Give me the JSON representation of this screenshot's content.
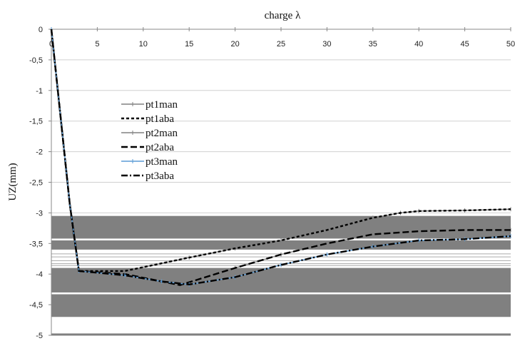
{
  "chart_data": {
    "type": "line",
    "title": "",
    "xlabel": "charge λ",
    "ylabel": "UZ(mm)",
    "xlim": [
      0,
      50
    ],
    "ylim": [
      -5,
      0
    ],
    "x_ticks": [
      0,
      5,
      10,
      15,
      20,
      25,
      30,
      35,
      40,
      45,
      50
    ],
    "x_tick_labels": [
      "0",
      "5",
      "10",
      "15",
      "20",
      "25",
      "30",
      "35",
      "40",
      "45",
      "50"
    ],
    "y_ticks": [
      0,
      -0.5,
      -1,
      -1.5,
      -2,
      -2.5,
      -3,
      -3.5,
      -4,
      -4.5,
      -5
    ],
    "y_tick_labels": [
      "0",
      "-0,5",
      "-1",
      "-1,5",
      "-2",
      "-2,5",
      "-3",
      "-3,5",
      "-4",
      "-4,5",
      "-5"
    ],
    "x_axis_position": "top",
    "legend_position": "left-center",
    "grid": "horizontal",
    "series": [
      {
        "name": "pt1man",
        "color": "#808080",
        "style": "solid-markers",
        "x": [
          0,
          2,
          3,
          8,
          15,
          20,
          25,
          30,
          35,
          38,
          40,
          45,
          50
        ],
        "y": [
          0,
          -2.85,
          -3.95,
          -3.95,
          -3.73,
          -3.58,
          -3.45,
          -3.28,
          -3.08,
          -3.0,
          -2.97,
          -2.96,
          -2.94
        ]
      },
      {
        "name": "pt1aba",
        "color": "#000000",
        "style": "dashed",
        "x": [
          0,
          2,
          3,
          8,
          15,
          20,
          25,
          30,
          35,
          38,
          40,
          45,
          50
        ],
        "y": [
          0,
          -2.85,
          -3.95,
          -3.95,
          -3.73,
          -3.58,
          -3.45,
          -3.28,
          -3.08,
          -3.0,
          -2.97,
          -2.96,
          -2.94
        ]
      },
      {
        "name": "pt2man",
        "color": "#808080",
        "style": "solid-markers",
        "x": [
          0,
          2,
          3,
          8,
          14,
          20,
          25,
          30,
          35,
          40,
          45,
          50
        ],
        "y": [
          0,
          -2.85,
          -3.95,
          -4.0,
          -4.18,
          -3.9,
          -3.68,
          -3.5,
          -3.35,
          -3.3,
          -3.28,
          -3.28
        ]
      },
      {
        "name": "pt2aba",
        "color": "#000000",
        "style": "long-dash",
        "x": [
          0,
          2,
          3,
          8,
          14,
          20,
          25,
          30,
          35,
          40,
          45,
          50
        ],
        "y": [
          0,
          -2.85,
          -3.95,
          -4.0,
          -4.18,
          -3.9,
          -3.68,
          -3.5,
          -3.35,
          -3.3,
          -3.28,
          -3.28
        ]
      },
      {
        "name": "pt3man",
        "color": "#5b9bd5",
        "style": "solid-markers",
        "x": [
          0,
          2,
          3,
          8,
          12,
          15,
          20,
          25,
          30,
          35,
          40,
          45,
          50
        ],
        "y": [
          0,
          -2.85,
          -3.95,
          -4.02,
          -4.12,
          -4.17,
          -4.05,
          -3.85,
          -3.68,
          -3.55,
          -3.45,
          -3.43,
          -3.38
        ]
      },
      {
        "name": "pt3aba",
        "color": "#000000",
        "style": "dash-dot",
        "x": [
          0,
          2,
          3,
          8,
          12,
          15,
          20,
          25,
          30,
          35,
          40,
          45,
          50
        ],
        "y": [
          0,
          -2.85,
          -3.95,
          -4.02,
          -4.12,
          -4.17,
          -4.05,
          -3.85,
          -3.68,
          -3.55,
          -3.45,
          -3.43,
          -3.38
        ]
      }
    ]
  }
}
